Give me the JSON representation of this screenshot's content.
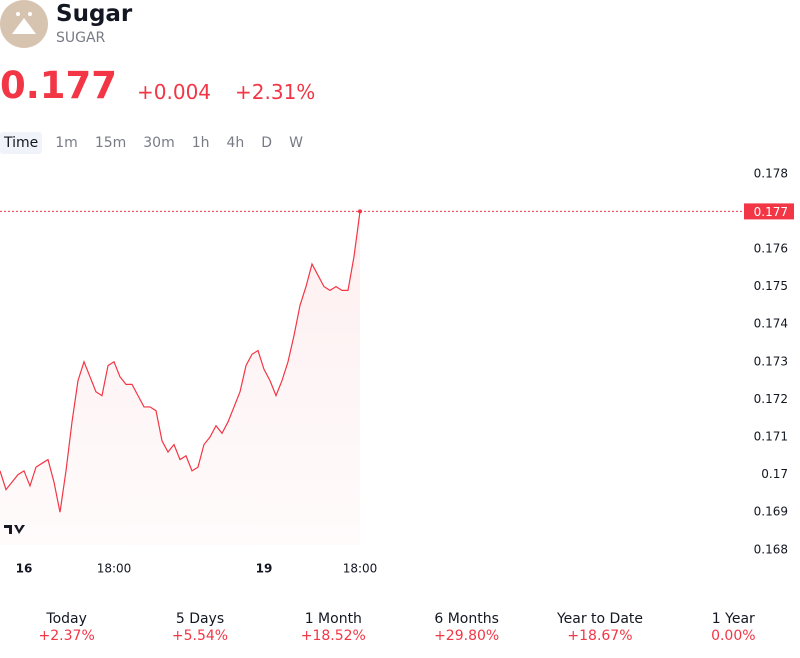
{
  "header": {
    "name": "Sugar",
    "symbol": "SUGAR",
    "price": "0.177",
    "change": "+0.004",
    "change_percent": "+2.31%"
  },
  "timeframes": [
    "Time",
    "1m",
    "15m",
    "30m",
    "1h",
    "4h",
    "D",
    "W"
  ],
  "chart_data": {
    "type": "line",
    "categories": [
      null,
      null,
      null,
      null,
      "16",
      null,
      null,
      null,
      null,
      null,
      null,
      null,
      null,
      null,
      null,
      null,
      null,
      null,
      null,
      "18:00",
      null,
      null,
      null,
      null,
      null,
      null,
      null,
      null,
      null,
      null,
      null,
      null,
      null,
      null,
      null,
      null,
      null,
      null,
      null,
      null,
      null,
      null,
      null,
      null,
      "19",
      null,
      null,
      null,
      null,
      null,
      null,
      null,
      null,
      null,
      null,
      null,
      null,
      null,
      null,
      null,
      "18:00"
    ],
    "series": [
      {
        "name": "SUGAR",
        "color": "#f23645",
        "values": [
          0.1701,
          0.1696,
          0.1698,
          0.17,
          0.1701,
          0.1697,
          0.1702,
          0.1703,
          0.1704,
          0.1698,
          0.169,
          0.1701,
          0.1714,
          0.1725,
          0.173,
          0.1726,
          0.1722,
          0.1721,
          0.1729,
          0.173,
          0.1726,
          0.1724,
          0.1724,
          0.1721,
          0.1718,
          0.1718,
          0.1717,
          0.1709,
          0.1706,
          0.1708,
          0.1704,
          0.1705,
          0.1701,
          0.1702,
          0.1708,
          0.171,
          0.1713,
          0.1711,
          0.1714,
          0.1718,
          0.1722,
          0.1729,
          0.1732,
          0.1733,
          0.1728,
          0.1725,
          0.1721,
          0.1725,
          0.173,
          0.1737,
          0.1745,
          0.175,
          0.1756,
          0.1753,
          0.175,
          0.1749,
          0.175,
          0.1749,
          0.1749,
          0.1758,
          0.177
        ]
      }
    ],
    "ylim": [
      0.1675,
      0.1785
    ],
    "yticks": [
      0.168,
      0.169,
      0.17,
      0.171,
      0.172,
      0.173,
      0.174,
      0.175,
      0.176,
      0.177,
      0.178
    ]
  },
  "performance": [
    {
      "period": "Today",
      "change": "+2.37%"
    },
    {
      "period": "5 Days",
      "change": "+5.54%"
    },
    {
      "period": "1 Month",
      "change": "+18.52%"
    },
    {
      "period": "6 Months",
      "change": "+29.80%"
    },
    {
      "period": "Year to Date",
      "change": "+18.67%"
    },
    {
      "period": "1 Year",
      "change": "0.00%"
    }
  ]
}
